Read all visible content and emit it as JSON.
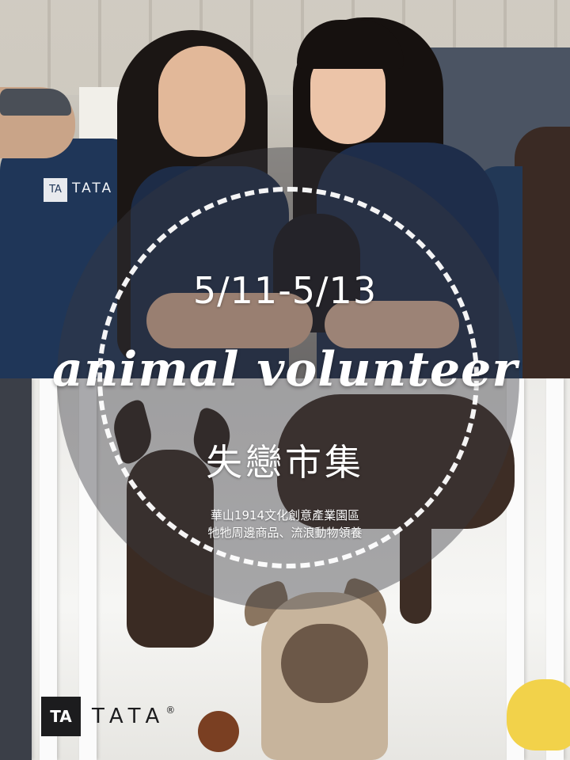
{
  "poster": {
    "date_range": "5/11-5/13",
    "headline_script": "animal volunteer",
    "title_cn": "失戀市集",
    "venue_line": "華山1914文化創意產業園區",
    "program_line": "牠牠周邊商品、流浪動物領養"
  },
  "shirt_brand": "TATA",
  "logo": {
    "mark": "TA",
    "wordmark": "TATA",
    "registered": "®"
  }
}
